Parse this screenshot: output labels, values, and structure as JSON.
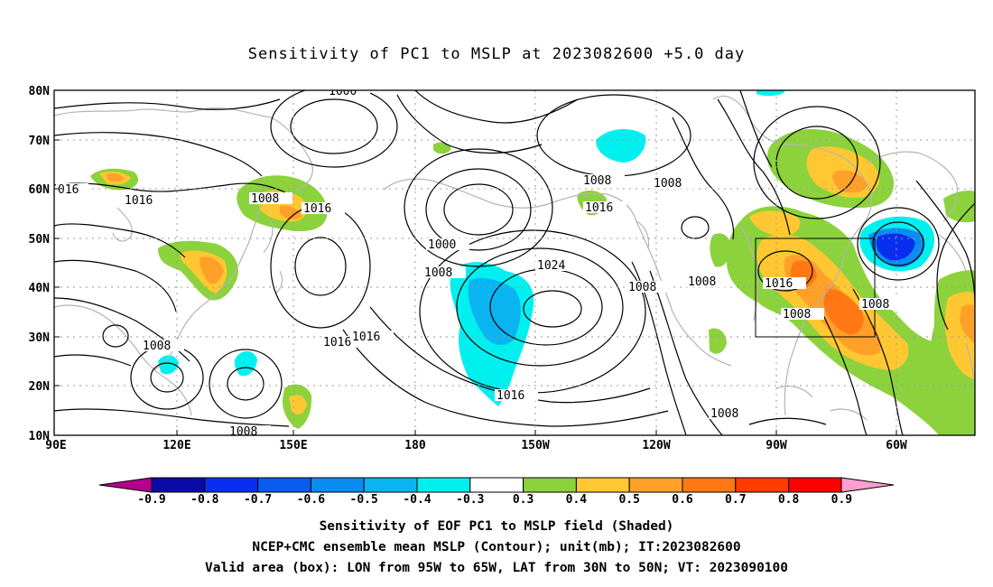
{
  "title": "Sensitivity of PC1 to MSLP at 2023082600 +5.0 day",
  "map": {
    "lat_labels": [
      "80N",
      "70N",
      "60N",
      "50N",
      "40N",
      "30N",
      "20N",
      "10N"
    ],
    "lon_labels": [
      "90E",
      "120E",
      "150E",
      "180",
      "150W",
      "120W",
      "90W",
      "60W"
    ],
    "extent": {
      "lon_west": "90E",
      "lon_east": "~45W",
      "lat_south": "10N",
      "lat_north": "80N"
    },
    "contour_labels": [
      "1000",
      "016",
      "1016",
      "1008",
      "1016",
      "1000",
      "1008",
      "1008",
      "1016",
      "1024",
      "1008",
      "1008",
      "1008",
      "1016",
      "1008",
      "1016",
      "1016",
      "1008",
      "1008",
      "1016",
      "1008",
      "1008"
    ],
    "valid_box": {
      "lon": "95W to 65W",
      "lat": "30N to 50N"
    },
    "colors": {
      "coast": "#b4b4b4",
      "contour": "#000000",
      "grid": "#9a9a9a"
    }
  },
  "colorbar": {
    "labels": [
      "-0.9",
      "-0.8",
      "-0.7",
      "-0.6",
      "-0.5",
      "-0.4",
      "-0.3",
      "0.3",
      "0.4",
      "0.5",
      "0.6",
      "0.7",
      "0.8",
      "0.9"
    ],
    "colors": [
      "#0a0aa8",
      "#0a2ef0",
      "#0a5cf0",
      "#0a8cf0",
      "#0ab4f0",
      "#00f0f0",
      "#ffffff",
      "#8cd23c",
      "#ffc832",
      "#ffa028",
      "#ff7814",
      "#ff3c00",
      "#ff0000"
    ],
    "low_arrow_color": "#b4008c",
    "high_arrow_color": "#ff9ecf"
  },
  "captions": [
    "Sensitivity of EOF PC1 to MSLP field (Shaded)",
    "NCEP+CMC ensemble mean MSLP (Contour); unit(mb); IT:2023082600",
    "Valid area (box): LON from 95W to 65W, LAT from 30N to 50N; VT: 2023090100"
  ]
}
